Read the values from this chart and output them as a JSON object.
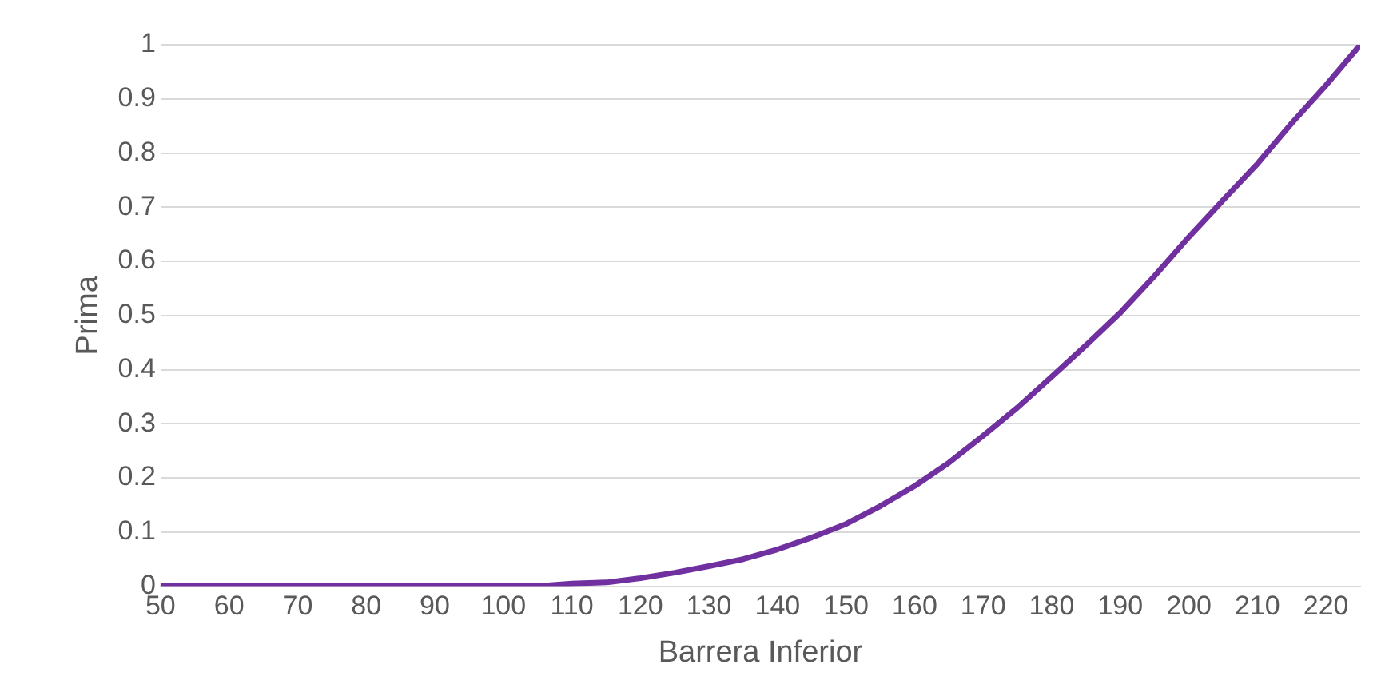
{
  "chart_data": {
    "type": "line",
    "xlabel": "Barrera Inferior",
    "ylabel": "Prima",
    "x": [
      50,
      55,
      60,
      65,
      70,
      75,
      80,
      85,
      90,
      95,
      100,
      105,
      110,
      115,
      120,
      125,
      130,
      135,
      140,
      145,
      150,
      155,
      160,
      165,
      170,
      175,
      180,
      185,
      190,
      195,
      200,
      205,
      210,
      215,
      220,
      225
    ],
    "series": [
      {
        "color": "#7030a0",
        "values": [
          0,
          0,
          0,
          0,
          0,
          0,
          0,
          0,
          0,
          0,
          0,
          0,
          0.005,
          0.007,
          0.015,
          0.025,
          0.037,
          0.05,
          0.068,
          0.09,
          0.115,
          0.148,
          0.185,
          0.228,
          0.278,
          0.33,
          0.387,
          0.445,
          0.505,
          0.573,
          0.645,
          0.713,
          0.78,
          0.855,
          0.925,
          1.0
        ]
      }
    ],
    "xlim": [
      50,
      225
    ],
    "xticks": [
      50,
      60,
      70,
      80,
      90,
      100,
      110,
      120,
      130,
      140,
      150,
      160,
      170,
      180,
      190,
      200,
      210,
      220
    ],
    "ylim": [
      0,
      1
    ],
    "yticks": [
      0,
      0.1,
      0.2,
      0.3,
      0.4,
      0.5,
      0.6,
      0.7,
      0.8,
      0.9,
      1
    ],
    "grid": "y",
    "legend": false,
    "marker": "none",
    "line_style": "solid"
  }
}
